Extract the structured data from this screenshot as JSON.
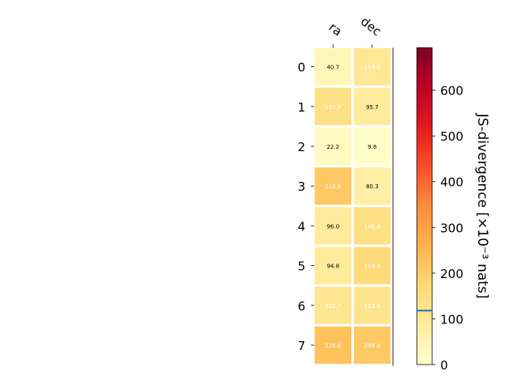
{
  "chart_data": {
    "type": "heatmap",
    "columns": [
      "ra",
      "dec"
    ],
    "rows": [
      "0",
      "1",
      "2",
      "3",
      "4",
      "5",
      "6",
      "7"
    ],
    "values": [
      [
        40.7,
        114.0
      ],
      [
        137.4,
        95.7
      ],
      [
        22.2,
        9.6
      ],
      [
        210.8,
        80.3
      ],
      [
        96.0,
        146.8
      ],
      [
        94.8,
        164.9
      ],
      [
        120.7,
        123.6
      ],
      [
        225.0,
        209.0
      ]
    ],
    "cell_labels": [
      [
        "40.7",
        "114.0"
      ],
      [
        "137.4",
        "95.7"
      ],
      [
        "22.2",
        "9.6"
      ],
      [
        "210.8",
        "80.3"
      ],
      [
        "96.0",
        "146.8"
      ],
      [
        "94.8",
        "164.9"
      ],
      [
        "120.7",
        "123.6"
      ],
      [
        "225.0",
        "209.0"
      ]
    ],
    "colormap": "YlOrRd",
    "colorbar": {
      "label": "JS-divergence [×10⁻³ nats]",
      "range": [
        0,
        693
      ],
      "ticks": [
        0,
        100,
        200,
        300,
        400,
        500,
        600
      ],
      "tick_labels": [
        "0",
        "100",
        "200",
        "300",
        "400",
        "500",
        "600"
      ],
      "marker_value": 118,
      "marker_color": "#1f77b4"
    },
    "label_color_threshold": 110,
    "grid": false
  }
}
